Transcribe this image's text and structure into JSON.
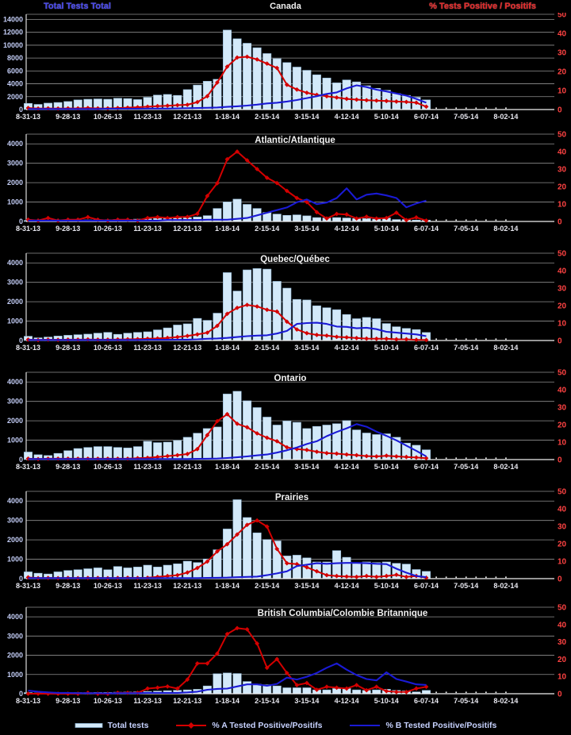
{
  "header": {
    "left_axis_title": "Total Tests Total",
    "right_axis_title": "% Tests Positive / Positifs"
  },
  "legend": {
    "items": [
      {
        "label": "Total tests",
        "swatch": "bar"
      },
      {
        "label": "% A Tested Positive/Positifs",
        "swatch": "line-diamond"
      },
      {
        "label": "% B Tested Positive/Positifs",
        "swatch": "line"
      }
    ]
  },
  "colors": {
    "bars": "#d3e9f9",
    "bar_border": "#8fb4d2",
    "pct_a": "#d40000",
    "pct_b": "#1a1ad4",
    "grid": "#909090",
    "axis": "#f0f0f0",
    "left_tick_text": "#c3cdf6",
    "right_tick_text": "#ff4242",
    "x_tick_text": "#e8e8f0",
    "title_text": "#f2f2f2",
    "legend_text": "#c7d2ff"
  },
  "x_axis": {
    "tick_labels": [
      "8-31-13",
      "9-28-13",
      "10-26-13",
      "11-23-13",
      "12-21-13",
      "1-18-14",
      "2-15-14",
      "3-15-14",
      "4-12-14",
      "5-10-14",
      "6-07-14",
      "7-05-14",
      "8-02-14"
    ],
    "weeks_shown": 49,
    "weeks_with_data": 41
  },
  "right_axis": {
    "ticks": [
      0,
      10,
      20,
      30,
      40,
      50
    ]
  },
  "chart_data": [
    {
      "type": "combo-bar-line",
      "title": "Canada",
      "left_axis_max": 14000,
      "left_axis_step": 2000,
      "right_axis_range": [
        0,
        50
      ],
      "series": {
        "total_tests": [
          950,
          800,
          1000,
          1100,
          1250,
          1500,
          1600,
          1650,
          1600,
          1750,
          1700,
          1550,
          1900,
          2250,
          2350,
          2200,
          3100,
          3800,
          4400,
          4700,
          12350,
          11000,
          10300,
          9600,
          8700,
          7900,
          7300,
          6600,
          6100,
          5400,
          4900,
          4150,
          4600,
          4300,
          3700,
          3300,
          3000,
          2500,
          2200,
          1900,
          1500
        ],
        "pct_a_positive": [
          0.8,
          0.5,
          0.6,
          0.5,
          0.6,
          0.6,
          0.8,
          0.6,
          0.6,
          0.8,
          1,
          1.2,
          1.5,
          1.8,
          2,
          2.3,
          2.5,
          3.9,
          7,
          14.2,
          22.5,
          27.3,
          27.7,
          26.3,
          24.1,
          21.8,
          13,
          10.5,
          8.8,
          7.7,
          7,
          6.3,
          5.6,
          5.2,
          4.9,
          4.7,
          4.5,
          4.2,
          4,
          3.6,
          1.5
        ],
        "pct_b_positive": [
          0.3,
          0.3,
          0.3,
          0.3,
          0.3,
          0.3,
          0.3,
          0.3,
          0.4,
          0.4,
          0.4,
          0.4,
          0.5,
          0.5,
          0.5,
          0.6,
          0.7,
          0.8,
          0.9,
          1.1,
          1.4,
          1.7,
          2.1,
          2.6,
          3.2,
          3.6,
          4.2,
          5,
          6,
          7,
          8.2,
          9,
          11.1,
          12.7,
          11.8,
          10.4,
          9.5,
          8.4,
          7.3,
          5.6,
          3.6
        ]
      }
    },
    {
      "type": "combo-bar-line",
      "title": "Atlantic/Atlantique",
      "left_axis_max": 4000,
      "left_axis_step": 1000,
      "right_axis_range": [
        0,
        50
      ],
      "series": {
        "total_tests": [
          50,
          40,
          50,
          60,
          60,
          70,
          80,
          80,
          90,
          100,
          110,
          120,
          140,
          160,
          170,
          180,
          200,
          230,
          300,
          670,
          1010,
          1150,
          880,
          670,
          465,
          380,
          315,
          340,
          290,
          200,
          180,
          200,
          180,
          150,
          150,
          120,
          180,
          100,
          100,
          70,
          70
        ],
        "pct_a_positive": [
          1,
          0.5,
          2,
          0.5,
          1,
          1,
          2.5,
          1,
          0.5,
          1,
          1,
          0.5,
          2,
          2.5,
          2,
          2.5,
          2.6,
          4.4,
          14.6,
          21.9,
          35.6,
          40,
          35,
          30,
          25,
          22,
          17.5,
          13.4,
          11.1,
          5.3,
          1.7,
          4.3,
          4,
          1.7,
          2.7,
          1.7,
          2,
          5,
          0.8,
          2.3,
          0.5
        ],
        "pct_b_positive": [
          0.5,
          0.5,
          0.5,
          0.5,
          0.5,
          0.5,
          0.5,
          0.5,
          0.5,
          0.5,
          0.5,
          0.5,
          0.5,
          0.5,
          0.8,
          0.8,
          0.8,
          0.8,
          1,
          1,
          1,
          1.5,
          2,
          3.5,
          5,
          6.5,
          8,
          11,
          12.6,
          9.9,
          10.8,
          13.4,
          19,
          12.6,
          15.3,
          16,
          14.9,
          13.4,
          8.1,
          10.3,
          11.9
        ]
      }
    },
    {
      "type": "combo-bar-line",
      "title": "Quebec/Québec",
      "left_axis_max": 4000,
      "left_axis_step": 1000,
      "right_axis_range": [
        0,
        50
      ],
      "series": {
        "total_tests": [
          220,
          140,
          180,
          230,
          270,
          300,
          330,
          380,
          420,
          320,
          380,
          420,
          450,
          550,
          650,
          800,
          860,
          1140,
          1040,
          1410,
          3500,
          2550,
          3640,
          3710,
          3680,
          3050,
          2700,
          2120,
          2090,
          1790,
          1690,
          1590,
          1340,
          1125,
          1190,
          1125,
          875,
          710,
          625,
          565,
          415
        ],
        "pct_a_positive": [
          0.5,
          0.3,
          0.5,
          0.4,
          0.5,
          0.5,
          0.6,
          0.5,
          0.5,
          0.6,
          0.7,
          0.8,
          1,
          1.2,
          1.5,
          2,
          2.6,
          3.5,
          4.5,
          8.4,
          15.3,
          18.7,
          20.4,
          19.5,
          17.6,
          16.6,
          10.8,
          6.3,
          4.2,
          3.2,
          2.8,
          2.1,
          1.8,
          1.4,
          1.1,
          1,
          1,
          0.7,
          0.7,
          0.4,
          0.3
        ],
        "pct_b_positive": [
          0.3,
          0.3,
          0.3,
          0.3,
          0.3,
          0.3,
          0.3,
          0.3,
          0.3,
          0.3,
          0.3,
          0.3,
          0.4,
          0.4,
          0.4,
          0.5,
          0.5,
          0.7,
          1,
          1.2,
          1.5,
          2,
          2.5,
          2.8,
          3,
          4,
          5.5,
          9.5,
          10,
          10.2,
          9.5,
          8,
          7.8,
          7,
          7.3,
          6.5,
          5,
          4.5,
          4,
          3.5,
          2.5
        ]
      }
    },
    {
      "type": "combo-bar-line",
      "title": "Ontario",
      "left_axis_max": 4000,
      "left_axis_step": 1000,
      "right_axis_range": [
        0,
        50
      ],
      "series": {
        "total_tests": [
          390,
          250,
          210,
          320,
          460,
          570,
          625,
          670,
          670,
          625,
          600,
          670,
          945,
          875,
          900,
          985,
          1150,
          1360,
          1600,
          1680,
          3380,
          3520,
          3030,
          2680,
          2190,
          1780,
          1990,
          1920,
          1600,
          1710,
          1780,
          1850,
          2010,
          1530,
          1370,
          1290,
          1330,
          1150,
          850,
          740,
          505
        ],
        "pct_a_positive": [
          0.5,
          0.3,
          0.5,
          0.5,
          0.5,
          0.5,
          0.5,
          0.5,
          0.5,
          0.5,
          0.5,
          0.8,
          1,
          1.5,
          2,
          2.5,
          3.2,
          6,
          14,
          22,
          26,
          20.5,
          18.5,
          15,
          12.5,
          10.5,
          7,
          6,
          5.5,
          4.5,
          3.7,
          3.4,
          2.9,
          2.5,
          2,
          1.8,
          2.2,
          1.8,
          1.5,
          1.2,
          0.8
        ],
        "pct_b_positive": [
          0.3,
          0.3,
          0.3,
          0.3,
          0.3,
          0.3,
          0.3,
          0.3,
          0.3,
          0.3,
          0.3,
          0.3,
          0.3,
          0.3,
          0.3,
          0.3,
          0.3,
          0.4,
          0.5,
          0.6,
          0.9,
          1.3,
          1.8,
          2.4,
          2.9,
          4,
          5.3,
          6.9,
          8.9,
          10.5,
          13.4,
          15.8,
          17.9,
          20.3,
          18.8,
          16,
          13.6,
          11,
          8,
          5,
          1.8
        ]
      }
    },
    {
      "type": "combo-bar-line",
      "title": "Prairies",
      "left_axis_max": 4000,
      "left_axis_step": 1000,
      "right_axis_range": [
        0,
        50
      ],
      "series": {
        "total_tests": [
          350,
          280,
          240,
          350,
          420,
          460,
          510,
          555,
          460,
          625,
          555,
          600,
          695,
          600,
          695,
          765,
          900,
          830,
          1015,
          1490,
          2560,
          4070,
          3150,
          2360,
          2015,
          1945,
          1170,
          1210,
          1070,
          860,
          860,
          1445,
          1100,
          790,
          860,
          830,
          860,
          790,
          750,
          470,
          375
        ],
        "pct_a_positive": [
          0.7,
          0.3,
          0.4,
          0.3,
          0.4,
          0.3,
          0.4,
          0.4,
          0.3,
          0.4,
          0.5,
          0.4,
          0.5,
          1,
          1.5,
          2,
          3.5,
          6.1,
          9.8,
          15.6,
          19.7,
          25.3,
          30.8,
          33.3,
          29.8,
          17,
          8.8,
          8.3,
          6.5,
          4.2,
          2,
          1.5,
          1.2,
          1,
          1.5,
          1,
          1.5,
          2.2,
          1,
          1.5,
          0.5
        ],
        "pct_b_positive": [
          0.3,
          0.3,
          0.3,
          0.3,
          0.3,
          0.3,
          0.3,
          0.3,
          0.3,
          0.3,
          0.3,
          0.3,
          0.3,
          0.3,
          0.3,
          0.3,
          0.3,
          0.3,
          0.4,
          0.5,
          0.6,
          0.8,
          1,
          1.2,
          2,
          3,
          4.2,
          7.2,
          8,
          8.8,
          8.5,
          8.8,
          9,
          9,
          8.8,
          8.5,
          8.3,
          5.7,
          3.4,
          1.5,
          0.8
        ]
      }
    },
    {
      "type": "combo-bar-line",
      "title": "British Columbia/Colombie Britannique",
      "left_axis_max": 4000,
      "left_axis_step": 1000,
      "right_axis_range": [
        0,
        50
      ],
      "series": {
        "total_tests": [
          60,
          40,
          50,
          40,
          50,
          60,
          60,
          70,
          70,
          80,
          90,
          100,
          120,
          140,
          160,
          180,
          200,
          230,
          405,
          1040,
          1080,
          1050,
          635,
          500,
          470,
          405,
          310,
          310,
          310,
          200,
          200,
          270,
          270,
          200,
          175,
          200,
          230,
          175,
          150,
          95,
          175
        ],
        "pct_a_positive": [
          0,
          0,
          0,
          0,
          0,
          0,
          0.5,
          0,
          0,
          0.5,
          0.5,
          0.5,
          3,
          3.5,
          4.2,
          3,
          8.2,
          17.5,
          17.5,
          23.2,
          34.5,
          37.9,
          37.2,
          29,
          15,
          20,
          12,
          5,
          6.2,
          2.3,
          4,
          3.5,
          3,
          5,
          2,
          4,
          1.5,
          1,
          1,
          3,
          4
        ],
        "pct_b_positive": [
          1.8,
          1.2,
          0.8,
          0.5,
          0.5,
          0.3,
          0.3,
          0.3,
          0.2,
          0.3,
          0.3,
          0.3,
          0.5,
          0.5,
          0.5,
          0.5,
          0.8,
          1.2,
          2.3,
          2.8,
          3,
          4.2,
          5.4,
          5.4,
          4.6,
          5.7,
          9.3,
          8.2,
          9.8,
          12,
          15,
          17.5,
          13.9,
          10.8,
          8.5,
          7.7,
          12.4,
          8.5,
          7,
          5.4,
          5.1
        ]
      }
    }
  ]
}
